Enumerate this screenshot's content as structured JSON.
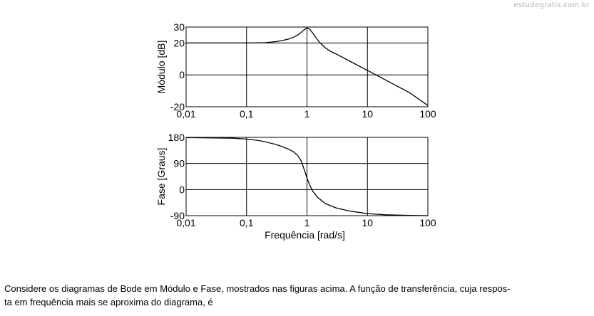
{
  "watermark": "estudegratis.com.br",
  "question": {
    "line1": "Considere os diagramas de Bode em Módulo e Fase, mostrados nas figuras acima. A função de transferência, cuja respos-",
    "line2": "ta em frequência mais se aproxima do diagrama, é"
  },
  "chart_data": [
    {
      "type": "line",
      "ylabel": "Módulo [dB]",
      "xlabel": "",
      "xscale": "log",
      "xlim": [
        0.01,
        100
      ],
      "ylim": [
        -20,
        30
      ],
      "x_ticks": [
        0.01,
        0.1,
        1,
        10,
        100
      ],
      "x_tick_labels": [
        "0,01",
        "0,1",
        "1",
        "10",
        "100"
      ],
      "y_ticks": [
        -20,
        0,
        20,
        30
      ],
      "y_tick_labels": [
        "-20",
        "0",
        "20",
        "30"
      ],
      "grid": true,
      "series": [
        {
          "x": [
            0.01,
            0.1,
            0.2,
            0.3,
            0.4,
            0.5,
            0.6,
            0.7,
            0.8,
            0.9,
            1.0,
            1.1,
            1.2,
            1.4,
            1.6,
            2.0,
            2.5,
            3,
            5,
            10,
            20,
            50,
            100
          ],
          "values": [
            20,
            20,
            20.2,
            20.8,
            21.6,
            22.5,
            23.6,
            25,
            26.6,
            28.3,
            29.5,
            28.8,
            27,
            23.5,
            20.6,
            17,
            14.6,
            13.2,
            8.8,
            2.8,
            -3.2,
            -11.2,
            -19.2
          ]
        }
      ]
    },
    {
      "type": "line",
      "ylabel": "Fase [Graus]",
      "xlabel": "Frequência [rad/s]",
      "xscale": "log",
      "xlim": [
        0.01,
        100
      ],
      "ylim": [
        -90,
        180
      ],
      "x_ticks": [
        0.01,
        0.1,
        1,
        10,
        100
      ],
      "x_tick_labels": [
        "0,01",
        "0,1",
        "1",
        "10",
        "100"
      ],
      "y_ticks": [
        -90,
        0,
        90,
        180
      ],
      "y_tick_labels": [
        "-90",
        "0",
        "90",
        "180"
      ],
      "grid": true,
      "series": [
        {
          "x": [
            0.01,
            0.03,
            0.06,
            0.1,
            0.15,
            0.2,
            0.3,
            0.4,
            0.5,
            0.6,
            0.7,
            0.8,
            0.9,
            1.0,
            1.1,
            1.25,
            1.5,
            2,
            3,
            5,
            10,
            20,
            50,
            100
          ],
          "values": [
            179,
            178,
            177,
            174,
            170,
            165,
            156,
            147,
            139,
            130,
            118,
            99,
            69,
            40,
            17,
            -6,
            -27,
            -48,
            -63,
            -74,
            -83,
            -87,
            -89,
            -90
          ]
        }
      ]
    }
  ]
}
